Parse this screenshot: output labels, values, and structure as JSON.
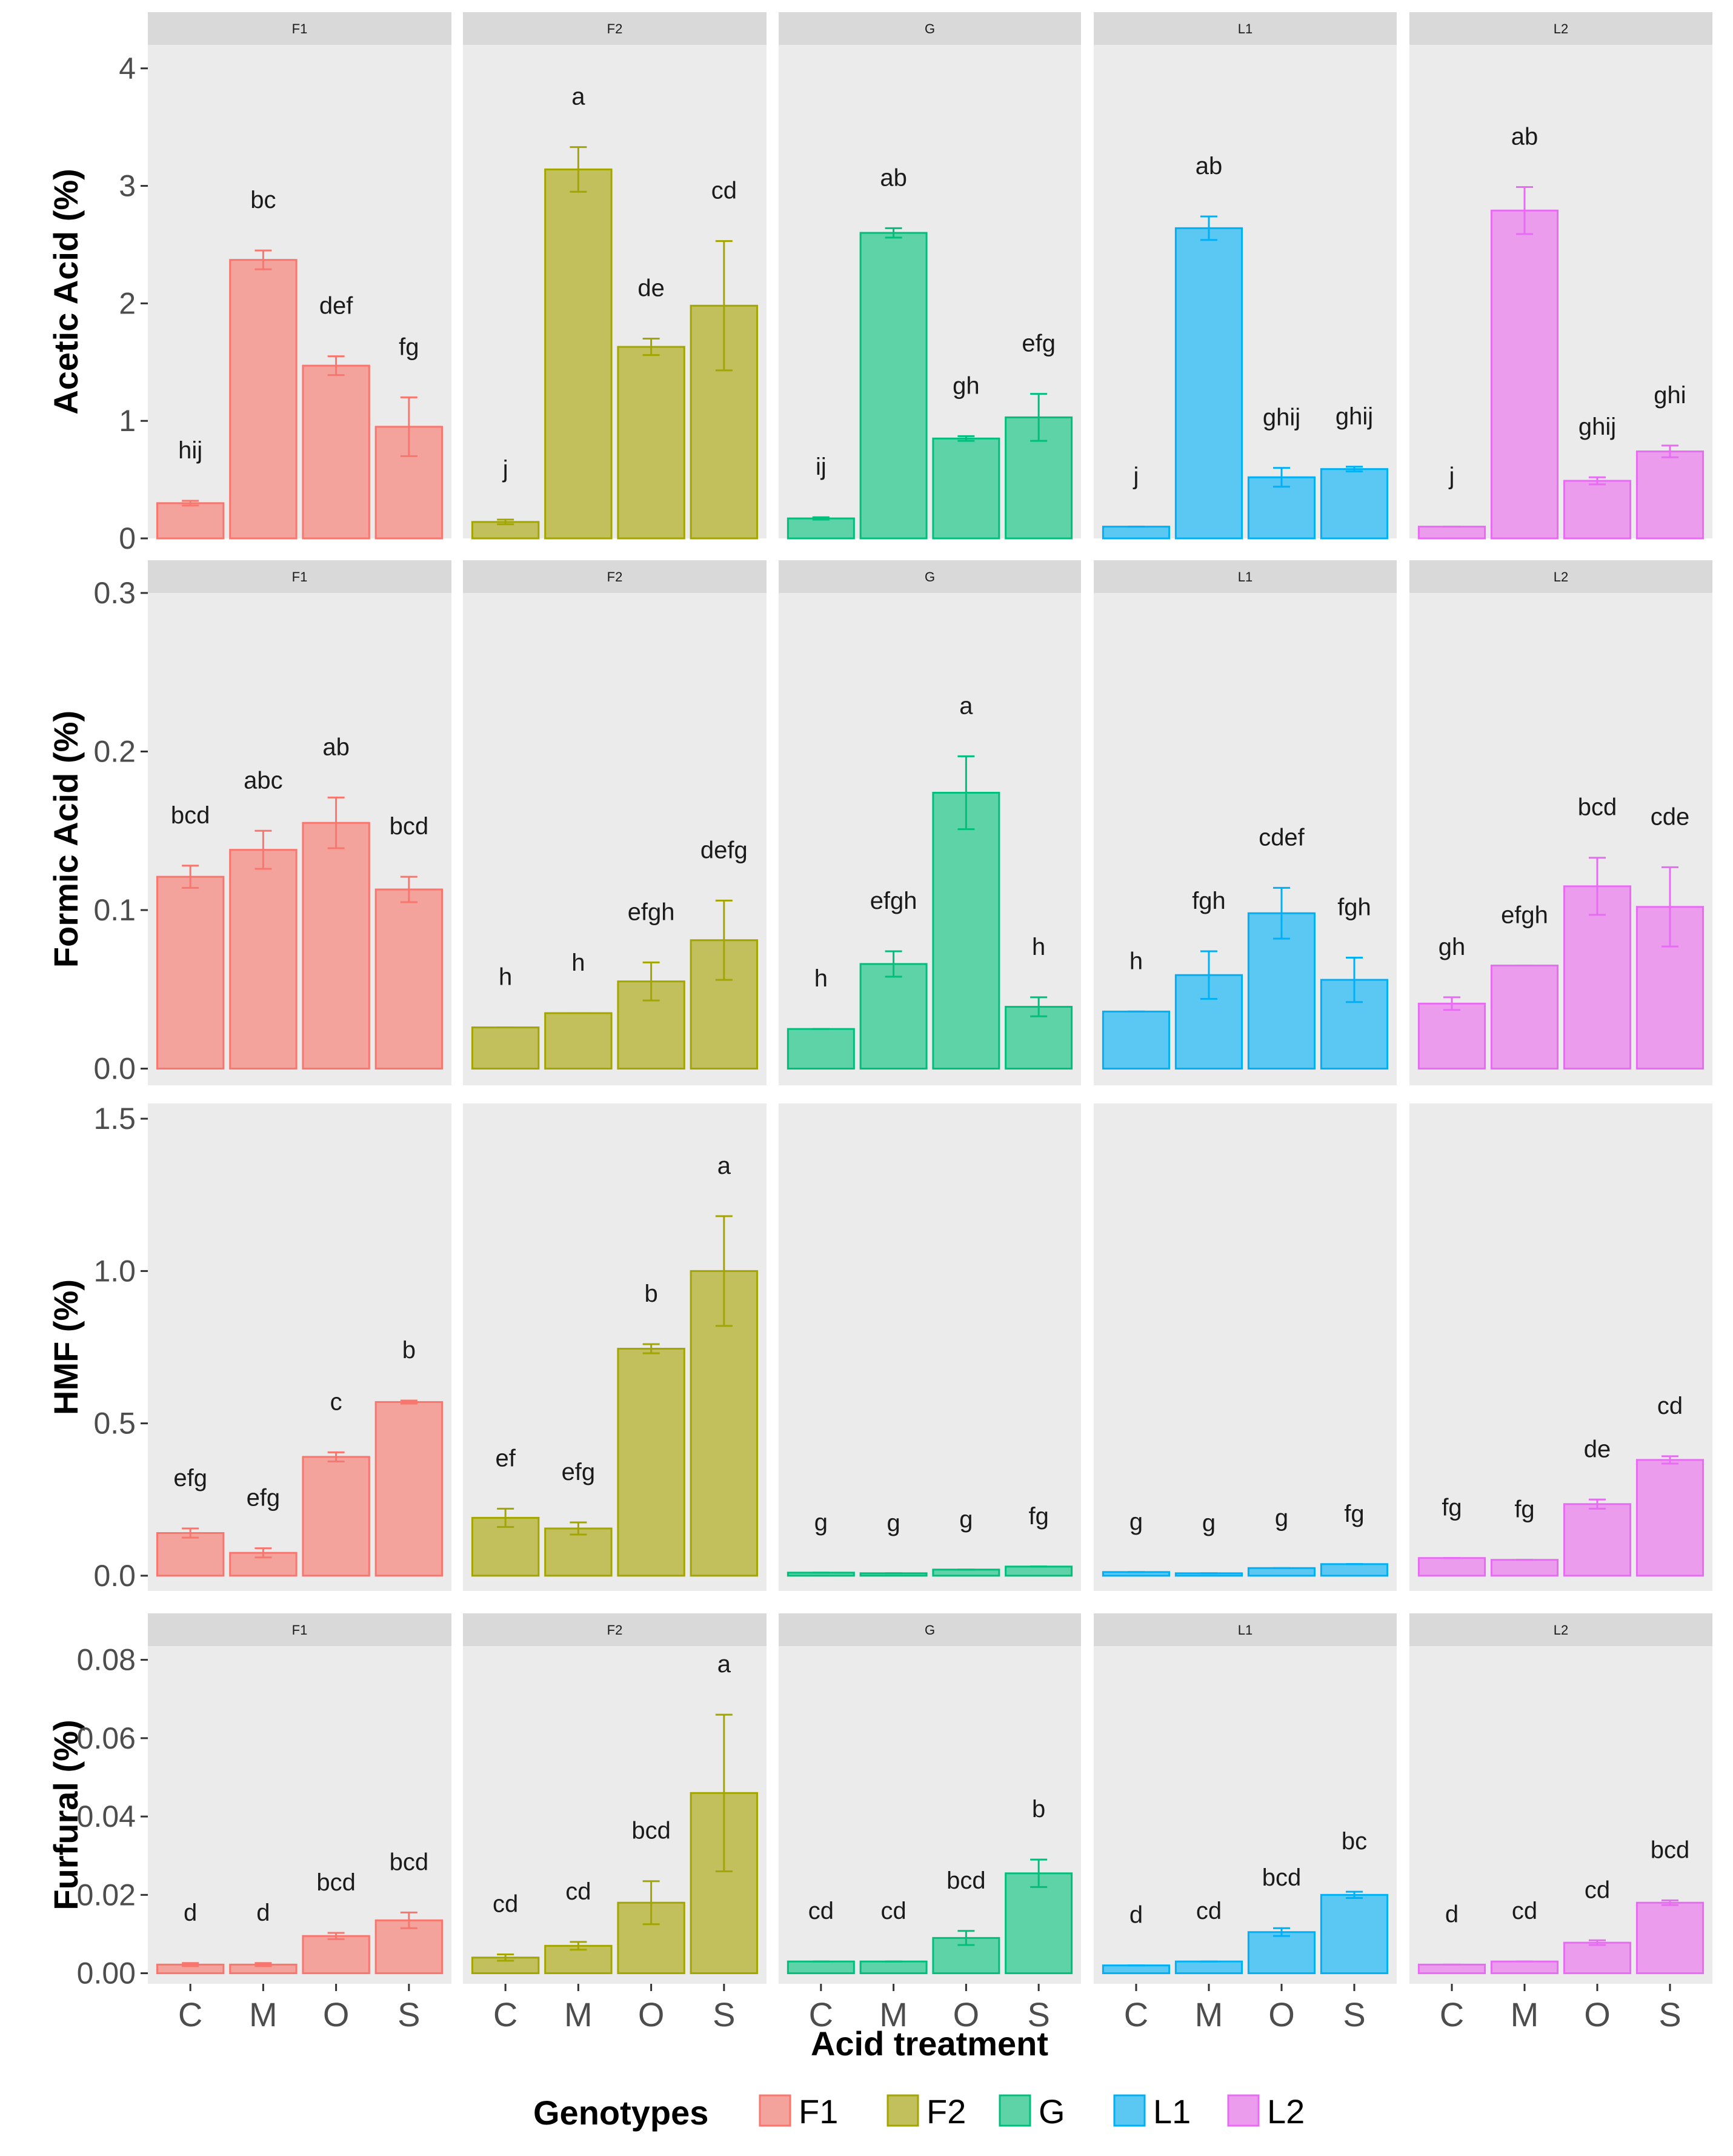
{
  "figure": {
    "xlabel": "Acid treatment",
    "legend": {
      "title": "Genotypes",
      "entries": [
        {
          "label": "F1",
          "fill": "#f4a39c",
          "stroke": "#f8766d"
        },
        {
          "label": "F2",
          "fill": "#c1c05d",
          "stroke": "#a3a500"
        },
        {
          "label": "G",
          "fill": "#5ed3a8",
          "stroke": "#00bf7d"
        },
        {
          "label": "L1",
          "fill": "#5ac8f2",
          "stroke": "#00b0f6"
        },
        {
          "label": "L2",
          "fill": "#eb9cec",
          "stroke": "#e76bf3"
        }
      ]
    }
  },
  "chart_data": [
    {
      "type": "bar",
      "ylabel": "Acetic Acid (%)",
      "ylim": [
        0,
        4.2
      ],
      "yticks": [
        0,
        1,
        2,
        3,
        4
      ],
      "ytick_labels": [
        "0",
        "1",
        "2",
        "3",
        "4"
      ],
      "strip": true,
      "categories": [
        "C",
        "M",
        "O",
        "S"
      ],
      "panels": [
        {
          "genotype": "F1",
          "values": [
            0.3,
            2.37,
            1.47,
            0.95
          ],
          "errors": [
            0.02,
            0.08,
            0.08,
            0.25
          ],
          "labels": [
            "hij",
            "bc",
            "def",
            "fg"
          ]
        },
        {
          "genotype": "F2",
          "values": [
            0.14,
            3.14,
            1.63,
            1.98
          ],
          "errors": [
            0.02,
            0.19,
            0.07,
            0.55
          ],
          "labels": [
            "j",
            "a",
            "de",
            "cd"
          ]
        },
        {
          "genotype": "G",
          "values": [
            0.17,
            2.6,
            0.85,
            1.03
          ],
          "errors": [
            0.01,
            0.04,
            0.02,
            0.2
          ],
          "labels": [
            "ij",
            "ab",
            "gh",
            "efg"
          ]
        },
        {
          "genotype": "L1",
          "values": [
            0.1,
            2.64,
            0.52,
            0.59
          ],
          "errors": [
            0.0,
            0.1,
            0.08,
            0.02
          ],
          "labels": [
            "j",
            "ab",
            "ghij",
            "ghij"
          ]
        },
        {
          "genotype": "L2",
          "values": [
            0.1,
            2.79,
            0.49,
            0.74
          ],
          "errors": [
            0.0,
            0.2,
            0.03,
            0.05
          ],
          "labels": [
            "j",
            "ab",
            "ghij",
            "ghi"
          ]
        }
      ]
    },
    {
      "type": "bar",
      "ylabel": "Formic Acid (%)",
      "ylim": [
        -0.0105,
        0.3
      ],
      "yticks": [
        0,
        0.1,
        0.2,
        0.3
      ],
      "ytick_labels": [
        "0.0",
        "0.1",
        "0.2",
        "0.3"
      ],
      "strip": true,
      "categories": [
        "C",
        "M",
        "O",
        "S"
      ],
      "panels": [
        {
          "genotype": "F1",
          "values": [
            0.121,
            0.138,
            0.155,
            0.113
          ],
          "errors": [
            0.007,
            0.012,
            0.016,
            0.008
          ],
          "labels": [
            "bcd",
            "abc",
            "ab",
            "bcd"
          ]
        },
        {
          "genotype": "F2",
          "values": [
            0.026,
            0.035,
            0.055,
            0.081
          ],
          "errors": [
            0.0,
            0.0,
            0.012,
            0.025
          ],
          "labels": [
            "h",
            "h",
            "efgh",
            "defg"
          ]
        },
        {
          "genotype": "G",
          "values": [
            0.025,
            0.066,
            0.174,
            0.039
          ],
          "errors": [
            0.0,
            0.008,
            0.023,
            0.006
          ],
          "labels": [
            "h",
            "efgh",
            "a",
            "h"
          ]
        },
        {
          "genotype": "L1",
          "values": [
            0.036,
            0.059,
            0.098,
            0.056
          ],
          "errors": [
            0.0,
            0.015,
            0.016,
            0.014
          ],
          "labels": [
            "h",
            "fgh",
            "cdef",
            "fgh"
          ]
        },
        {
          "genotype": "L2",
          "values": [
            0.041,
            0.065,
            0.115,
            0.102
          ],
          "errors": [
            0.004,
            0.0,
            0.018,
            0.025
          ],
          "labels": [
            "gh",
            "efgh",
            "bcd",
            "cde"
          ]
        }
      ]
    },
    {
      "type": "bar",
      "ylabel": "HMF (%)",
      "ylim": [
        -0.05,
        1.55
      ],
      "yticks": [
        0,
        0.5,
        1,
        1.5
      ],
      "ytick_labels": [
        "0.0",
        "0.5",
        "1.0",
        "1.5"
      ],
      "strip": false,
      "categories": [
        "C",
        "M",
        "O",
        "S"
      ],
      "panels": [
        {
          "genotype": "F1",
          "values": [
            0.14,
            0.075,
            0.39,
            0.57
          ],
          "errors": [
            0.015,
            0.015,
            0.015,
            0.005
          ],
          "labels": [
            "efg",
            "efg",
            "c",
            "b"
          ]
        },
        {
          "genotype": "F2",
          "values": [
            0.19,
            0.155,
            0.745,
            1.0
          ],
          "errors": [
            0.03,
            0.02,
            0.015,
            0.18
          ],
          "labels": [
            "ef",
            "efg",
            "b",
            "a"
          ]
        },
        {
          "genotype": "G",
          "values": [
            0.01,
            0.008,
            0.02,
            0.03
          ],
          "errors": [
            0.0,
            0.0,
            0.0,
            0.0
          ],
          "labels": [
            "g",
            "g",
            "g",
            "fg"
          ]
        },
        {
          "genotype": "L1",
          "values": [
            0.012,
            0.008,
            0.025,
            0.038
          ],
          "errors": [
            0.0,
            0.0,
            0.0,
            0.0
          ],
          "labels": [
            "g",
            "g",
            "g",
            "fg"
          ]
        },
        {
          "genotype": "L2",
          "values": [
            0.058,
            0.052,
            0.235,
            0.38
          ],
          "errors": [
            0.0,
            0.0,
            0.015,
            0.012
          ],
          "labels": [
            "fg",
            "fg",
            "de",
            "cd"
          ]
        }
      ]
    },
    {
      "type": "bar",
      "ylabel": "Furfural (%)",
      "ylim": [
        -0.0027,
        0.0835
      ],
      "yticks": [
        0,
        0.02,
        0.04,
        0.06,
        0.08
      ],
      "ytick_labels": [
        "0.00",
        "0.02",
        "0.04",
        "0.06",
        "0.08"
      ],
      "strip": true,
      "categories": [
        "C",
        "M",
        "O",
        "S"
      ],
      "panels": [
        {
          "genotype": "F1",
          "values": [
            0.0022,
            0.0022,
            0.0095,
            0.0135
          ],
          "errors": [
            0.0004,
            0.0004,
            0.0008,
            0.002
          ],
          "labels": [
            "d",
            "d",
            "bcd",
            "bcd"
          ]
        },
        {
          "genotype": "F2",
          "values": [
            0.004,
            0.007,
            0.018,
            0.046
          ],
          "errors": [
            0.0008,
            0.001,
            0.0055,
            0.02
          ],
          "labels": [
            "cd",
            "cd",
            "bcd",
            "a"
          ]
        },
        {
          "genotype": "G",
          "values": [
            0.003,
            0.003,
            0.009,
            0.0255
          ],
          "errors": [
            0.0,
            0.0,
            0.0018,
            0.0035
          ],
          "labels": [
            "cd",
            "cd",
            "bcd",
            "b"
          ]
        },
        {
          "genotype": "L1",
          "values": [
            0.002,
            0.003,
            0.0105,
            0.02
          ],
          "errors": [
            0.0,
            0.0,
            0.001,
            0.0008
          ],
          "labels": [
            "d",
            "cd",
            "bcd",
            "bc"
          ]
        },
        {
          "genotype": "L2",
          "values": [
            0.0022,
            0.003,
            0.0078,
            0.018
          ],
          "errors": [
            0.0,
            0.0,
            0.0006,
            0.0006
          ],
          "labels": [
            "d",
            "cd",
            "cd",
            "bcd"
          ]
        }
      ]
    }
  ]
}
